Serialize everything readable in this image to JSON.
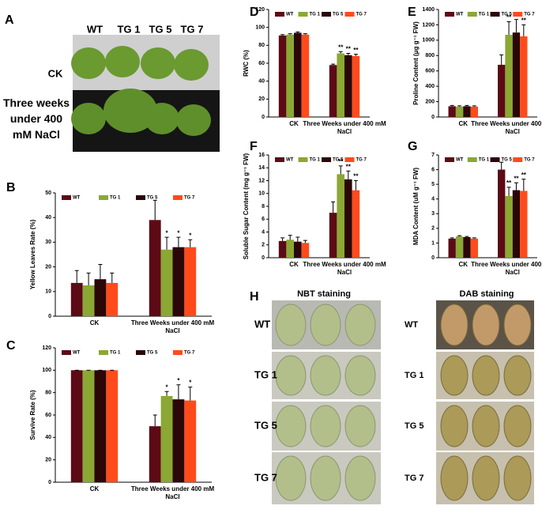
{
  "panel_a": {
    "label": "A",
    "columns": [
      "WT",
      "TG 1",
      "TG 5",
      "TG 7"
    ],
    "rows": [
      "CK",
      "Three weeks under 400 mM NaCl"
    ]
  },
  "chart_data": [
    {
      "type": "bar",
      "label": "B",
      "ylabel": "Yellow Leaves Rate (%)",
      "categories": [
        "CK",
        "Three Weeks under 400 mM NaCl"
      ],
      "ylim": [
        0,
        50
      ],
      "yticks": [
        0,
        10,
        20,
        30,
        40,
        50
      ],
      "series": [
        {
          "name": "WT",
          "color": "#5c0b16",
          "values": [
            13.5,
            39
          ],
          "errors": [
            5,
            8
          ],
          "significance": [
            null,
            null
          ]
        },
        {
          "name": "TG 1",
          "color": "#8aa833",
          "values": [
            12.5,
            27
          ],
          "errors": [
            5,
            5
          ],
          "significance": [
            null,
            "*"
          ]
        },
        {
          "name": "TG 5",
          "color": "#2b0709",
          "values": [
            15,
            28
          ],
          "errors": [
            6,
            4
          ],
          "significance": [
            null,
            "*"
          ]
        },
        {
          "name": "TG 7",
          "color": "#ff4b1c",
          "values": [
            13.5,
            28
          ],
          "errors": [
            4,
            3
          ],
          "significance": [
            null,
            "*"
          ]
        }
      ]
    },
    {
      "type": "bar",
      "label": "C",
      "ylabel": "Survive Rate (%)",
      "categories": [
        "CK",
        "Three Weeks under 400 mM NaCl"
      ],
      "ylim": [
        0,
        120
      ],
      "yticks": [
        0,
        20,
        40,
        60,
        80,
        100,
        120
      ],
      "series": [
        {
          "name": "WT",
          "color": "#5c0b16",
          "values": [
            100,
            50
          ],
          "errors": [
            0,
            10
          ],
          "significance": [
            null,
            null
          ]
        },
        {
          "name": "TG 1",
          "color": "#8aa833",
          "values": [
            100,
            77
          ],
          "errors": [
            0,
            4
          ],
          "significance": [
            null,
            "*"
          ]
        },
        {
          "name": "TG 5",
          "color": "#2b0709",
          "values": [
            100,
            74
          ],
          "errors": [
            0,
            13
          ],
          "significance": [
            null,
            "*"
          ]
        },
        {
          "name": "TG 7",
          "color": "#ff4b1c",
          "values": [
            100,
            73
          ],
          "errors": [
            0,
            12
          ],
          "significance": [
            null,
            "*"
          ]
        }
      ]
    },
    {
      "type": "bar",
      "label": "D",
      "ylabel": "RWC (%)",
      "categories": [
        "CK",
        "Three Weeks under 400 mM NaCl"
      ],
      "ylim": [
        0,
        120
      ],
      "yticks": [
        0,
        20,
        40,
        60,
        80,
        100,
        120
      ],
      "series": [
        {
          "name": "WT",
          "color": "#5c0b16",
          "values": [
            91,
            58
          ],
          "errors": [
            1,
            1
          ],
          "significance": [
            null,
            null
          ]
        },
        {
          "name": "TG 1",
          "color": "#8aa833",
          "values": [
            92,
            71
          ],
          "errors": [
            1,
            2
          ],
          "significance": [
            null,
            "**"
          ]
        },
        {
          "name": "TG 5",
          "color": "#2b0709",
          "values": [
            94,
            69
          ],
          "errors": [
            1,
            2
          ],
          "significance": [
            null,
            "**"
          ]
        },
        {
          "name": "TG 7",
          "color": "#ff4b1c",
          "values": [
            92,
            68
          ],
          "errors": [
            1,
            2
          ],
          "significance": [
            null,
            "**"
          ]
        }
      ]
    },
    {
      "type": "bar",
      "label": "E",
      "ylabel": "Proline Content (μg g⁻¹ FW)",
      "categories": [
        "CK",
        "Three Weeks under 400 mM NaCl"
      ],
      "ylim": [
        0,
        1400
      ],
      "yticks": [
        0,
        200,
        400,
        600,
        800,
        1000,
        1200,
        1400
      ],
      "series": [
        {
          "name": "WT",
          "color": "#5c0b16",
          "values": [
            140,
            680
          ],
          "errors": [
            10,
            130
          ],
          "significance": [
            null,
            null
          ]
        },
        {
          "name": "TG 1",
          "color": "#8aa833",
          "values": [
            135,
            1070
          ],
          "errors": [
            10,
            170
          ],
          "significance": [
            null,
            "**"
          ]
        },
        {
          "name": "TG 5",
          "color": "#2b0709",
          "values": [
            140,
            1100
          ],
          "errors": [
            10,
            170
          ],
          "significance": [
            null,
            "**"
          ]
        },
        {
          "name": "TG 7",
          "color": "#ff4b1c",
          "values": [
            135,
            1050
          ],
          "errors": [
            10,
            150
          ],
          "significance": [
            null,
            "**"
          ]
        }
      ]
    },
    {
      "type": "bar",
      "label": "F",
      "ylabel": "Soluble Sugar Content (mg g⁻¹ FW)",
      "categories": [
        "CK",
        "Three Weeks under 400 mM NaCl"
      ],
      "ylim": [
        0,
        16
      ],
      "yticks": [
        0,
        2,
        4,
        6,
        8,
        10,
        12,
        14,
        16
      ],
      "series": [
        {
          "name": "WT",
          "color": "#5c0b16",
          "values": [
            2.6,
            7
          ],
          "errors": [
            0.5,
            1.7
          ],
          "significance": [
            null,
            null
          ]
        },
        {
          "name": "TG 1",
          "color": "#8aa833",
          "values": [
            2.8,
            13
          ],
          "errors": [
            0.7,
            1.3
          ],
          "significance": [
            null,
            "**"
          ]
        },
        {
          "name": "TG 5",
          "color": "#2b0709",
          "values": [
            2.5,
            12.2
          ],
          "errors": [
            0.7,
            1.3
          ],
          "significance": [
            null,
            "**"
          ]
        },
        {
          "name": "TG 7",
          "color": "#ff4b1c",
          "values": [
            2.3,
            10.5
          ],
          "errors": [
            0.4,
            1.5
          ],
          "significance": [
            null,
            "**"
          ]
        }
      ]
    },
    {
      "type": "bar",
      "label": "G",
      "ylabel": "MDA Content (uM g⁻¹ FW)",
      "categories": [
        "CK",
        "Three Weeks under 400 mM NaCl"
      ],
      "ylim": [
        0,
        7
      ],
      "yticks": [
        0,
        1,
        2,
        3,
        4,
        5,
        6,
        7
      ],
      "series": [
        {
          "name": "WT",
          "color": "#5c0b16",
          "values": [
            1.3,
            6
          ],
          "errors": [
            0.05,
            0.5
          ],
          "significance": [
            null,
            null
          ]
        },
        {
          "name": "TG 1",
          "color": "#8aa833",
          "values": [
            1.45,
            4.2
          ],
          "errors": [
            0.05,
            0.6
          ],
          "significance": [
            null,
            "**"
          ]
        },
        {
          "name": "TG 5",
          "color": "#2b0709",
          "values": [
            1.4,
            4.6
          ],
          "errors": [
            0.05,
            0.5
          ],
          "significance": [
            null,
            "**"
          ]
        },
        {
          "name": "TG 7",
          "color": "#ff4b1c",
          "values": [
            1.3,
            4.55
          ],
          "errors": [
            0.05,
            0.8
          ],
          "significance": [
            null,
            "**"
          ]
        }
      ]
    }
  ],
  "panel_h": {
    "label": "H",
    "columns": [
      "NBT staining",
      "DAB staining"
    ],
    "rows": [
      "WT",
      "TG 1",
      "TG 5",
      "TG 7"
    ]
  }
}
